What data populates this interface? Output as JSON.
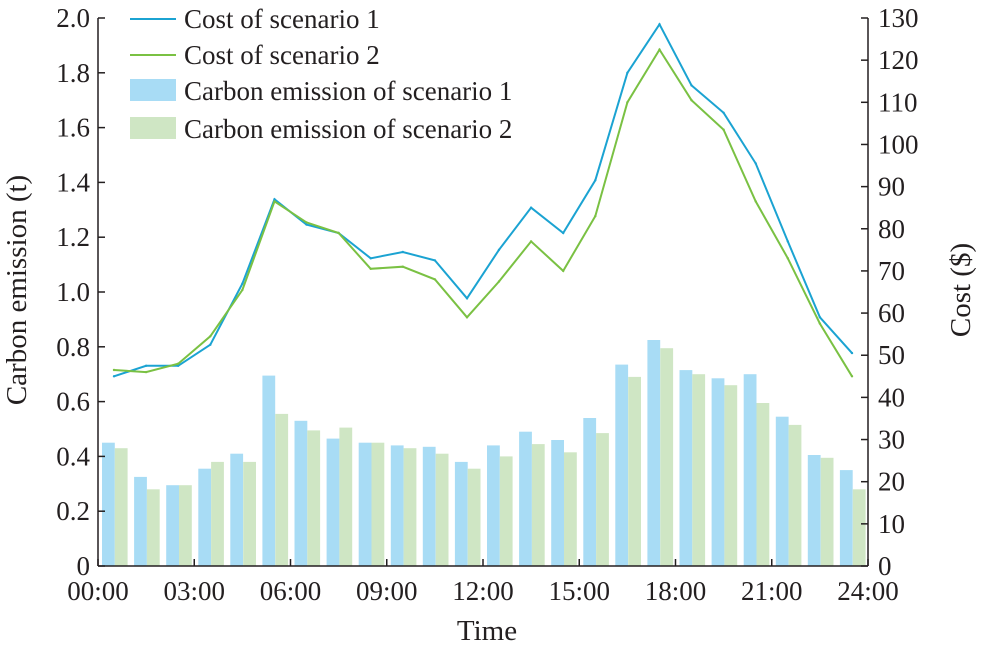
{
  "chart_data": {
    "type": "bar+line",
    "xlabel": "Time",
    "ylabel_left": "Carbon emission (t)",
    "ylabel_right": "Cost ($)",
    "ylim_left": [
      0,
      2.0
    ],
    "ylim_right": [
      0,
      130
    ],
    "xlim": [
      0,
      24
    ],
    "grid": false,
    "legend_position": "top-left",
    "x_ticks": [
      "00:00",
      "03:00",
      "06:00",
      "09:00",
      "12:00",
      "15:00",
      "18:00",
      "21:00",
      "24:00"
    ],
    "y_ticks_left": [
      "0",
      "0.2",
      "0.4",
      "0.6",
      "0.8",
      "1.0",
      "1.2",
      "1.4",
      "1.6",
      "1.8",
      "2.0"
    ],
    "y_ticks_right": [
      "0",
      "10",
      "20",
      "30",
      "40",
      "50",
      "60",
      "70",
      "80",
      "90",
      "100",
      "110",
      "120",
      "130"
    ],
    "hours": [
      0,
      1,
      2,
      3,
      4,
      5,
      6,
      7,
      8,
      9,
      10,
      11,
      12,
      13,
      14,
      15,
      16,
      17,
      18,
      19,
      20,
      21,
      22,
      23
    ],
    "bar_series": [
      {
        "name": "Carbon emission of scenario 1",
        "color": "#a8dcf5",
        "axis": "left",
        "values": [
          0.45,
          0.325,
          0.295,
          0.355,
          0.41,
          0.695,
          0.53,
          0.465,
          0.45,
          0.44,
          0.435,
          0.38,
          0.44,
          0.49,
          0.46,
          0.54,
          0.735,
          0.825,
          0.715,
          0.685,
          0.7,
          0.545,
          0.405,
          0.35
        ]
      },
      {
        "name": "Carbon emission of scenario 2",
        "color": "#cfe6c4",
        "axis": "left",
        "values": [
          0.43,
          0.28,
          0.295,
          0.38,
          0.38,
          0.555,
          0.495,
          0.505,
          0.45,
          0.43,
          0.41,
          0.355,
          0.4,
          0.445,
          0.415,
          0.485,
          0.69,
          0.795,
          0.7,
          0.66,
          0.595,
          0.515,
          0.395,
          0.28
        ]
      }
    ],
    "line_series": [
      {
        "name": "Cost of scenario 1",
        "color": "#1ba3d2",
        "axis": "right",
        "values": [
          45,
          47.5,
          47.5,
          52.5,
          67,
          87,
          81,
          79,
          73,
          74.5,
          72.5,
          63.5,
          75,
          85,
          79,
          91.5,
          117,
          128.5,
          114,
          107.5,
          95.5,
          77,
          59,
          50.5
        ]
      },
      {
        "name": "Cost of scenario 2",
        "color": "#7ac143",
        "axis": "right",
        "values": [
          46.5,
          46,
          48,
          54.5,
          65.5,
          86.5,
          81.5,
          79,
          70.5,
          71,
          68,
          59,
          67.5,
          77,
          70,
          83,
          110,
          122.5,
          110.5,
          103.5,
          86.5,
          73,
          57.5,
          45
        ]
      }
    ]
  }
}
